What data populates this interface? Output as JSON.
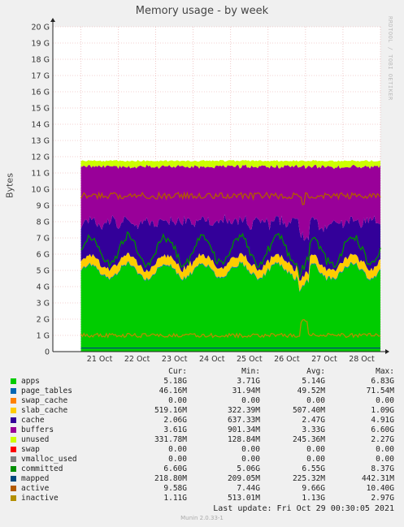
{
  "chart_data": {
    "type": "area",
    "title": "Memory usage - by week",
    "ylabel": "Bytes",
    "ylim": [
      0,
      20
    ],
    "yticks": [
      "0",
      "1 G",
      "2 G",
      "3 G",
      "4 G",
      "5 G",
      "6 G",
      "7 G",
      "8 G",
      "9 G",
      "10 G",
      "11 G",
      "12 G",
      "13 G",
      "14 G",
      "15 G",
      "16 G",
      "17 G",
      "18 G",
      "19 G",
      "20 G"
    ],
    "xticks": [
      "21 Oct",
      "22 Oct",
      "23 Oct",
      "24 Oct",
      "25 Oct",
      "26 Oct",
      "27 Oct",
      "28 Oct"
    ],
    "grid": true,
    "series": [
      {
        "name": "apps",
        "color": "#00CC00",
        "cur": "5.18G",
        "min": "3.71G",
        "avg": "5.14G",
        "max": "6.83G"
      },
      {
        "name": "page_tables",
        "color": "#0066B3",
        "cur": "46.16M",
        "min": "31.94M",
        "avg": "49.52M",
        "max": "71.54M"
      },
      {
        "name": "swap_cache",
        "color": "#FF8000",
        "cur": "0.00",
        "min": "0.00",
        "avg": "0.00",
        "max": "0.00"
      },
      {
        "name": "slab_cache",
        "color": "#FFCC00",
        "cur": "519.16M",
        "min": "322.39M",
        "avg": "507.40M",
        "max": "1.09G"
      },
      {
        "name": "cache",
        "color": "#330099",
        "cur": "2.06G",
        "min": "637.33M",
        "avg": "2.47G",
        "max": "4.91G"
      },
      {
        "name": "buffers",
        "color": "#990099",
        "cur": "3.61G",
        "min": "901.34M",
        "avg": "3.33G",
        "max": "6.60G"
      },
      {
        "name": "unused",
        "color": "#CCFF00",
        "cur": "331.78M",
        "min": "128.84M",
        "avg": "245.36M",
        "max": "2.27G"
      },
      {
        "name": "swap",
        "color": "#FF0000",
        "cur": "0.00",
        "min": "0.00",
        "avg": "0.00",
        "max": "0.00"
      },
      {
        "name": "vmalloc_used",
        "color": "#808080",
        "cur": "0.00",
        "min": "0.00",
        "avg": "0.00",
        "max": "0.00"
      },
      {
        "name": "committed",
        "color": "#008F00",
        "cur": "6.60G",
        "min": "5.06G",
        "avg": "6.55G",
        "max": "8.37G"
      },
      {
        "name": "mapped",
        "color": "#00487D",
        "cur": "218.80M",
        "min": "209.05M",
        "avg": "225.32M",
        "max": "442.31M"
      },
      {
        "name": "active",
        "color": "#B35A00",
        "cur": "9.58G",
        "min": "7.44G",
        "avg": "9.66G",
        "max": "10.40G"
      },
      {
        "name": "inactive",
        "color": "#B38F00",
        "cur": "1.11G",
        "min": "513.01M",
        "avg": "1.13G",
        "max": "2.97G"
      }
    ]
  },
  "legend_headers": {
    "cur": "Cur:",
    "min": "Min:",
    "avg": "Avg:",
    "max": "Max:"
  },
  "side_note": "RRDTOOL / TOBI OETIKER",
  "last_update": "Last update:  Fri Oct 29 00:30:05 2021",
  "footer": "Munin 2.0.33-1"
}
